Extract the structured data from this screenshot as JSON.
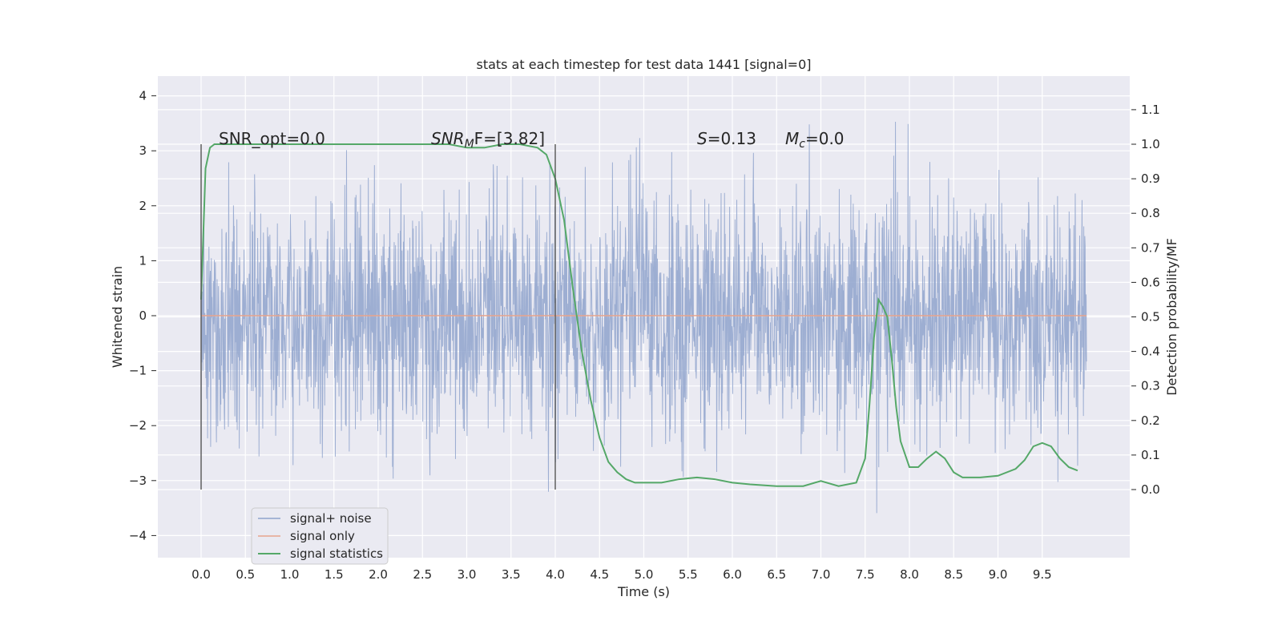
{
  "chart_data": {
    "type": "line",
    "title": "stats at each timestep for test data 1441 [signal=0]",
    "xlabel": "Time (s)",
    "ylabel": "Whitened strain",
    "ylabel_right": "Detection probability/MF",
    "xlim": [
      -0.5,
      10.5
    ],
    "ylim": [
      -4.4,
      4.4
    ],
    "ylim_right": [
      -0.2,
      1.2
    ],
    "x_ticks": [
      "0.0",
      "0.5",
      "1.0",
      "1.5",
      "2.0",
      "2.5",
      "3.0",
      "3.5",
      "4.0",
      "4.5",
      "5.0",
      "5.5",
      "6.0",
      "6.5",
      "7.0",
      "7.5",
      "8.0",
      "8.5",
      "9.0",
      "9.5"
    ],
    "y_ticks": [
      "4",
      "3",
      "2",
      "1",
      "0",
      "−1",
      "−2",
      "−3",
      "−4"
    ],
    "y_ticks_right": [
      "1.1",
      "1.0",
      "0.9",
      "0.8",
      "0.7",
      "0.6",
      "0.5",
      "0.4",
      "0.3",
      "0.2",
      "0.1",
      "0.0"
    ],
    "grid": true,
    "legend_position": "lower-left",
    "annotations": [
      {
        "text": "SNR_opt=0.0"
      },
      {
        "base": "SNR",
        "sub": "M",
        "tail": "F=[3.82]"
      },
      {
        "base": "S",
        "tail": "=0.13"
      },
      {
        "base": "M",
        "sub": "c",
        "tail": "=0.0"
      }
    ],
    "vlines": [
      0.0,
      4.0
    ],
    "series": [
      {
        "name": "signal+ noise",
        "color": "#8fa3cc",
        "axis": "left",
        "x_range": [
          0.0,
          10.0
        ],
        "envelope_min": -4.1,
        "envelope_max": 4.0
      },
      {
        "name": "signal only",
        "color": "#e8a48c",
        "axis": "left",
        "x": [
          0.0,
          10.0
        ],
        "y": [
          0.0,
          0.0
        ]
      },
      {
        "name": "signal statistics",
        "color": "#55a868",
        "axis": "right",
        "x": [
          0.0,
          0.05,
          0.1,
          0.15,
          0.2,
          0.3,
          0.5,
          1.0,
          1.5,
          2.0,
          2.5,
          2.8,
          3.0,
          3.2,
          3.4,
          3.6,
          3.8,
          3.9,
          4.0,
          4.1,
          4.2,
          4.3,
          4.4,
          4.5,
          4.6,
          4.7,
          4.8,
          4.9,
          5.0,
          5.2,
          5.4,
          5.6,
          5.8,
          6.0,
          6.2,
          6.5,
          6.8,
          7.0,
          7.2,
          7.4,
          7.5,
          7.55,
          7.6,
          7.65,
          7.7,
          7.75,
          7.8,
          7.85,
          7.9,
          8.0,
          8.05,
          8.1,
          8.2,
          8.3,
          8.4,
          8.5,
          8.6,
          8.7,
          8.8,
          9.0,
          9.2,
          9.3,
          9.4,
          9.5,
          9.6,
          9.7,
          9.8,
          9.9
        ],
        "y": [
          0.55,
          0.93,
          0.99,
          1.0,
          1.0,
          1.0,
          1.0,
          1.0,
          1.0,
          1.0,
          1.0,
          1.0,
          0.99,
          0.99,
          1.0,
          1.0,
          0.99,
          0.97,
          0.9,
          0.78,
          0.58,
          0.4,
          0.26,
          0.15,
          0.08,
          0.05,
          0.03,
          0.02,
          0.02,
          0.02,
          0.03,
          0.035,
          0.03,
          0.02,
          0.015,
          0.01,
          0.01,
          0.025,
          0.01,
          0.02,
          0.09,
          0.25,
          0.44,
          0.55,
          0.53,
          0.5,
          0.38,
          0.24,
          0.14,
          0.065,
          0.065,
          0.065,
          0.09,
          0.11,
          0.09,
          0.05,
          0.035,
          0.035,
          0.035,
          0.04,
          0.06,
          0.085,
          0.125,
          0.135,
          0.125,
          0.09,
          0.065,
          0.055
        ]
      }
    ]
  }
}
